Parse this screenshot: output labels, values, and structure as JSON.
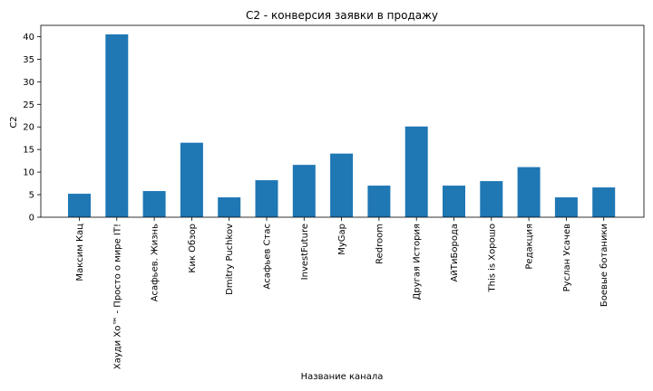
{
  "chart_data": {
    "type": "bar",
    "title": "C2 - конверсия заявки в продажу",
    "xlabel": "Название канала",
    "ylabel": "C2",
    "ylim": [
      0,
      42.5
    ],
    "yticks": [
      0,
      5,
      10,
      15,
      20,
      25,
      30,
      35,
      40
    ],
    "grid": false,
    "bar_color": "#1f77b4",
    "categories": [
      "Максим Кац",
      "Хауди Хо™ - Просто о мире IT!",
      "Асафьев. Жизнь",
      "Кик Обзор",
      "Dmitry Puchkov",
      "Асафьев Стас",
      "InvestFuture",
      "MyGap",
      "Redroom",
      "Другая История",
      "АйТиБорода",
      "This is Хорошо",
      "Редакция",
      "Руслан Усачев",
      "Боевые ботаники"
    ],
    "values": [
      5.2,
      40.5,
      5.8,
      16.5,
      4.4,
      8.2,
      11.6,
      14.1,
      7.0,
      20.1,
      7.0,
      8.0,
      11.1,
      4.4,
      6.6
    ]
  }
}
